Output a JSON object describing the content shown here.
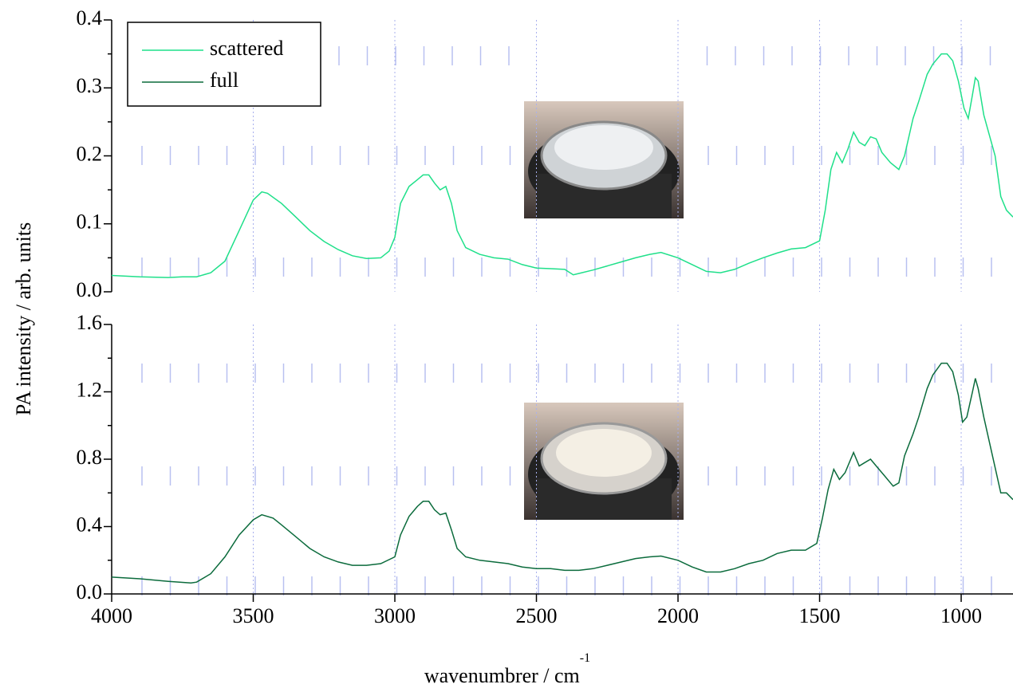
{
  "chart_data": [
    {
      "type": "line",
      "y_label": "PA intensity / arb. units",
      "legend": "upper left",
      "xlim": [
        4000,
        817
      ],
      "ylim": [
        0,
        0.4
      ],
      "yticks": [
        {
          "value": 0,
          "label": "0.0"
        },
        0.1,
        0.2,
        0.3,
        0.4
      ],
      "x": [
        4000,
        3900,
        3800,
        3750,
        3700,
        3650,
        3600,
        3550,
        3500,
        3470,
        3450,
        3400,
        3350,
        3300,
        3250,
        3200,
        3150,
        3100,
        3050,
        3020,
        3000,
        2980,
        2950,
        2920,
        2900,
        2880,
        2860,
        2840,
        2820,
        2800,
        2780,
        2750,
        2700,
        2650,
        2600,
        2550,
        2500,
        2450,
        2400,
        2370,
        2350,
        2300,
        2250,
        2200,
        2150,
        2100,
        2060,
        2000,
        1950,
        1900,
        1850,
        1800,
        1750,
        1700,
        1650,
        1600,
        1550,
        1500,
        1480,
        1460,
        1440,
        1420,
        1400,
        1380,
        1360,
        1340,
        1320,
        1300,
        1280,
        1250,
        1220,
        1200,
        1170,
        1150,
        1120,
        1100,
        1070,
        1050,
        1030,
        1010,
        990,
        975,
        960,
        950,
        940,
        920,
        900,
        880,
        860,
        840,
        817
      ],
      "series": [
        {
          "name": "scattered",
          "color": "#1fe08a",
          "values": [
            0.024,
            0.022,
            0.021,
            0.022,
            0.022,
            0.028,
            0.045,
            0.09,
            0.135,
            0.147,
            0.145,
            0.13,
            0.11,
            0.09,
            0.074,
            0.062,
            0.053,
            0.049,
            0.05,
            0.06,
            0.08,
            0.13,
            0.155,
            0.165,
            0.172,
            0.172,
            0.16,
            0.15,
            0.155,
            0.13,
            0.09,
            0.065,
            0.055,
            0.05,
            0.048,
            0.04,
            0.035,
            0.034,
            0.033,
            0.025,
            0.027,
            0.032,
            0.038,
            0.044,
            0.05,
            0.055,
            0.058,
            0.05,
            0.04,
            0.03,
            0.028,
            0.033,
            0.042,
            0.05,
            0.057,
            0.063,
            0.065,
            0.075,
            0.12,
            0.18,
            0.205,
            0.19,
            0.21,
            0.235,
            0.22,
            0.215,
            0.228,
            0.225,
            0.205,
            0.19,
            0.18,
            0.2,
            0.255,
            0.28,
            0.32,
            0.335,
            0.35,
            0.35,
            0.34,
            0.31,
            0.27,
            0.255,
            0.29,
            0.315,
            0.31,
            0.26,
            0.23,
            0.2,
            0.14,
            0.12,
            0.11
          ]
        }
      ]
    },
    {
      "type": "line",
      "x_label": "wavenumbrer / cm",
      "x_label_sup": "-1",
      "xlim": [
        4000,
        817
      ],
      "ylim": [
        0,
        1.6
      ],
      "xticks": [
        4000,
        3500,
        3000,
        2500,
        2000,
        1500,
        1000
      ],
      "yticks": [
        {
          "value": 0,
          "label": "0.0"
        },
        0.4,
        0.8,
        1.2,
        1.6
      ],
      "x": [
        4000,
        3900,
        3800,
        3720,
        3700,
        3650,
        3600,
        3550,
        3500,
        3470,
        3430,
        3400,
        3350,
        3300,
        3250,
        3200,
        3150,
        3100,
        3050,
        3000,
        2980,
        2950,
        2920,
        2900,
        2880,
        2860,
        2840,
        2820,
        2800,
        2780,
        2750,
        2700,
        2650,
        2600,
        2550,
        2500,
        2450,
        2400,
        2350,
        2300,
        2250,
        2200,
        2150,
        2100,
        2060,
        2000,
        1950,
        1900,
        1850,
        1800,
        1750,
        1700,
        1650,
        1600,
        1550,
        1510,
        1490,
        1470,
        1450,
        1430,
        1410,
        1380,
        1360,
        1340,
        1320,
        1300,
        1270,
        1240,
        1220,
        1200,
        1170,
        1150,
        1120,
        1100,
        1070,
        1050,
        1030,
        1010,
        995,
        980,
        960,
        950,
        940,
        920,
        900,
        880,
        860,
        840,
        817
      ],
      "series": [
        {
          "name": "full",
          "color": "#0b6b3c",
          "values": [
            0.1,
            0.09,
            0.075,
            0.065,
            0.07,
            0.12,
            0.22,
            0.35,
            0.44,
            0.47,
            0.45,
            0.41,
            0.34,
            0.27,
            0.22,
            0.19,
            0.17,
            0.17,
            0.18,
            0.22,
            0.35,
            0.46,
            0.52,
            0.55,
            0.55,
            0.5,
            0.47,
            0.48,
            0.38,
            0.27,
            0.22,
            0.2,
            0.19,
            0.18,
            0.16,
            0.15,
            0.15,
            0.14,
            0.14,
            0.15,
            0.17,
            0.19,
            0.21,
            0.22,
            0.225,
            0.2,
            0.16,
            0.13,
            0.13,
            0.15,
            0.18,
            0.2,
            0.24,
            0.26,
            0.26,
            0.3,
            0.45,
            0.62,
            0.74,
            0.68,
            0.72,
            0.84,
            0.76,
            0.78,
            0.8,
            0.76,
            0.7,
            0.64,
            0.66,
            0.82,
            0.95,
            1.05,
            1.22,
            1.3,
            1.37,
            1.37,
            1.32,
            1.18,
            1.02,
            1.05,
            1.2,
            1.28,
            1.22,
            1.05,
            0.9,
            0.75,
            0.6,
            0.6,
            0.56
          ]
        }
      ]
    }
  ]
}
